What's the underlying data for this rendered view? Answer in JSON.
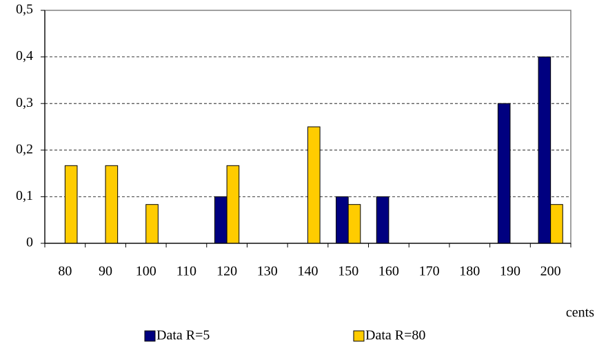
{
  "chart_data": {
    "type": "bar",
    "categories": [
      "80",
      "90",
      "100",
      "110",
      "120",
      "130",
      "140",
      "150",
      "160",
      "170",
      "180",
      "190",
      "200"
    ],
    "series": [
      {
        "name": "Data R=5",
        "color": "#000080",
        "values": [
          0,
          0,
          0,
          0,
          0.1,
          0,
          0,
          0.1,
          0.1,
          0,
          0,
          0.3,
          0.4
        ]
      },
      {
        "name": "Data R=80",
        "color": "#ffcc00",
        "values": [
          0.1667,
          0.1667,
          0.0833,
          0,
          0.1667,
          0,
          0.25,
          0.0833,
          0,
          0,
          0,
          0,
          0.0833
        ]
      }
    ],
    "x_label": "cents",
    "ylim": [
      0,
      0.5
    ],
    "yticks": [
      0,
      {
        "value": 0.1,
        "label": "0,1"
      },
      {
        "value": 0.2,
        "label": "0,2"
      },
      {
        "value": 0.3,
        "label": "0,3"
      },
      {
        "value": 0.4,
        "label": "0,4"
      },
      {
        "value": 0.5,
        "label": "0,5"
      }
    ],
    "grid": true,
    "legend": "bottom"
  }
}
